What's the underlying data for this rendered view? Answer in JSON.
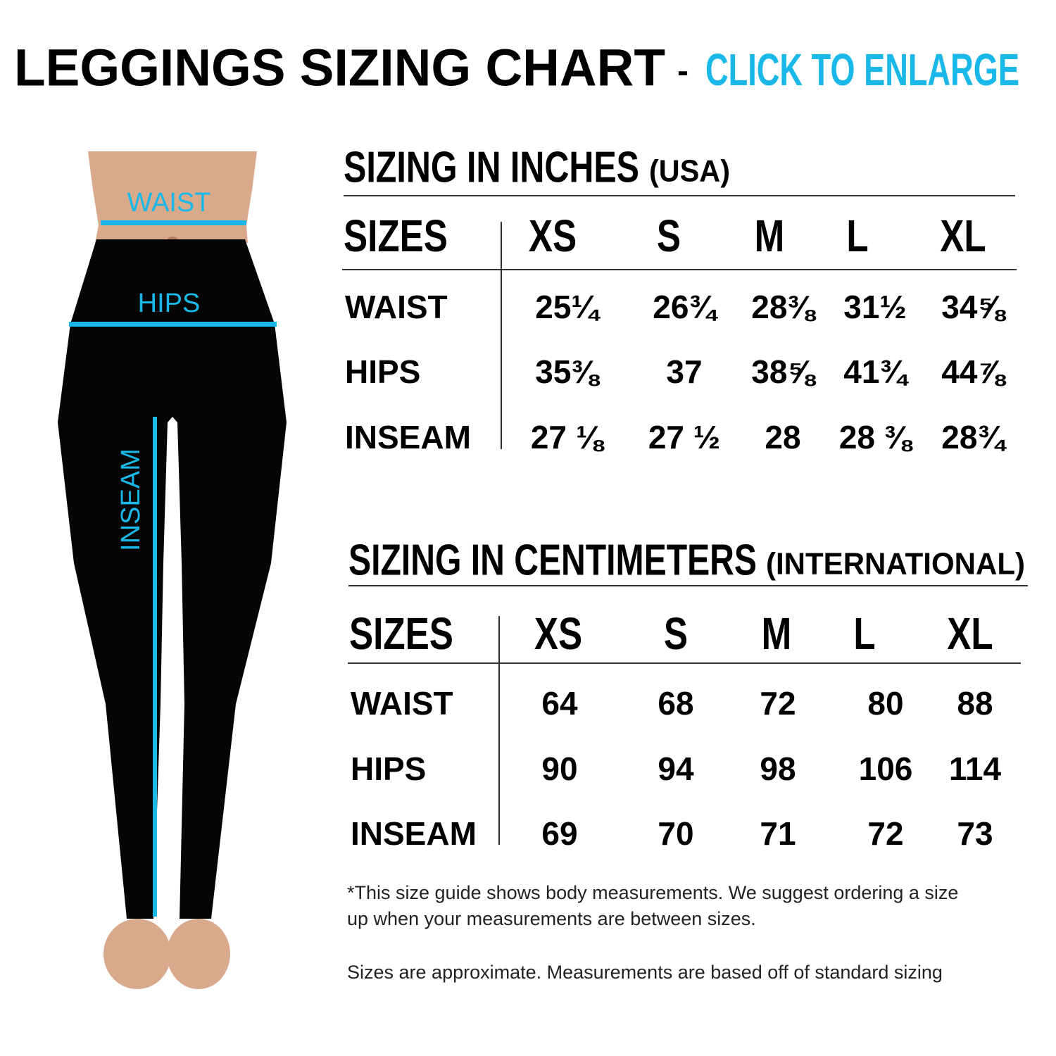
{
  "header": {
    "title": "LEGGINGS SIZING CHART",
    "separator": "-",
    "link": "CLICK TO ENLARGE"
  },
  "figure": {
    "labels": [
      "WAIST",
      "HIPS",
      "INSEAM"
    ]
  },
  "tables": [
    {
      "title": "SIZING IN INCHES",
      "subtitle": "(USA)",
      "columns": [
        "SIZES",
        "XS",
        "S",
        "M",
        "L",
        "XL"
      ],
      "rows": [
        [
          "WAIST",
          "25¼",
          "26¾",
          "28⅜",
          "31½",
          "34⅝"
        ],
        [
          "HIPS",
          "35⅜",
          "37",
          "38⅝",
          "41¾",
          "44⅞"
        ],
        [
          "INSEAM",
          "27 ⅛",
          "27 ½",
          "28",
          "28 ⅜",
          "28¾"
        ]
      ]
    },
    {
      "title": "SIZING IN CENTIMETERS",
      "subtitle": "(INTERNATIONAL)",
      "columns": [
        "SIZES",
        "XS",
        "S",
        "M",
        "L",
        "XL"
      ],
      "rows": [
        [
          "WAIST",
          "64",
          "68",
          "72",
          "80",
          "88"
        ],
        [
          "HIPS",
          "90",
          "94",
          "98",
          "106",
          "114"
        ],
        [
          "INSEAM",
          "69",
          "70",
          "71",
          "72",
          "73"
        ]
      ]
    }
  ],
  "notes": [
    "*This size guide shows body measurements. We suggest ordering a size",
    "up when your measurements are between sizes.",
    "Sizes are approximate. Measurements are based off of standard sizing"
  ]
}
